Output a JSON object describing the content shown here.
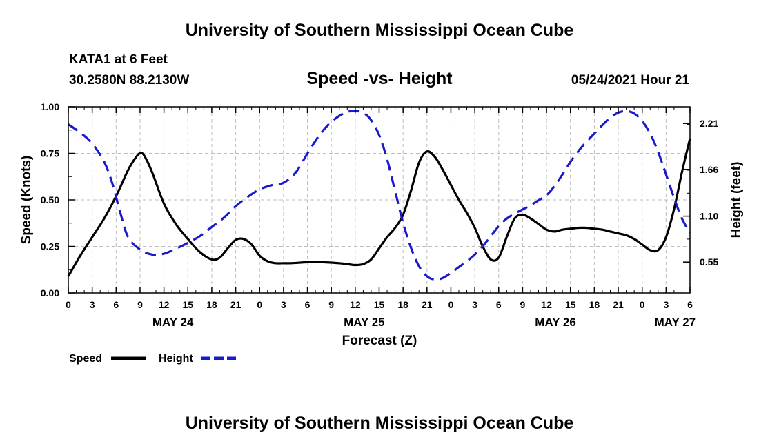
{
  "header": {
    "title": "University of Southern Mississippi Ocean Cube",
    "station": "KATA1 at 6 Feet",
    "coords": "30.2580N  88.2130W",
    "datetime": "05/24/2021 Hour 21"
  },
  "footer": {
    "title": "University of Southern Mississippi Ocean Cube"
  },
  "chart_data": {
    "type": "line",
    "title": "Speed -vs- Height",
    "xlabel": "Forecast (Z)",
    "ylabel_left": "Speed (Knots)",
    "ylabel_right": "Height (feet)",
    "xlim": [
      0,
      78
    ],
    "ylim_left": [
      0,
      1
    ],
    "ylim_right": [
      0.18,
      2.41
    ],
    "grid": true,
    "x_tick_labels": [
      "0",
      "3",
      "6",
      "9",
      "12",
      "15",
      "18",
      "21",
      "0",
      "3",
      "6",
      "9",
      "12",
      "15",
      "18",
      "21",
      "0",
      "3",
      "6",
      "9",
      "12",
      "15",
      "18",
      "21",
      "0",
      "3",
      "6"
    ],
    "date_labels": [
      {
        "label": "MAY 24",
        "x": 12
      },
      {
        "label": "MAY 25",
        "x": 36
      },
      {
        "label": "MAY 26",
        "x": 60
      },
      {
        "label": "MAY 27",
        "x": 75
      }
    ],
    "y_left_ticks": [
      {
        "value": 0,
        "label": "0.00"
      },
      {
        "value": 0.25,
        "label": "0.25"
      },
      {
        "value": 0.5,
        "label": "0.50"
      },
      {
        "value": 0.75,
        "label": "0.75"
      },
      {
        "value": 1.0,
        "label": "1.00"
      }
    ],
    "y_right_ticks": [
      {
        "value": 0.55,
        "label": "0.55"
      },
      {
        "value": 1.1,
        "label": "1.10"
      },
      {
        "value": 1.66,
        "label": "1.66"
      },
      {
        "value": 2.21,
        "label": "2.21"
      }
    ],
    "series": [
      {
        "name": "Speed",
        "axis": "left",
        "color": "#000000",
        "style": "solid",
        "x": [
          0,
          1.5,
          3,
          4.5,
          6,
          7.5,
          8.5,
          9,
          9.5,
          10.5,
          12,
          13.5,
          15,
          16.5,
          18,
          19,
          20,
          21,
          22,
          23,
          24,
          25,
          26,
          27,
          28,
          30,
          32,
          34,
          35,
          36,
          37,
          38,
          39,
          40,
          41,
          42,
          43,
          44,
          45,
          46,
          47,
          48,
          49,
          50,
          51,
          52,
          53,
          54,
          55,
          56,
          57,
          58,
          59,
          60,
          61,
          62,
          63,
          64,
          65,
          66,
          67,
          68,
          69,
          70,
          71,
          72,
          73,
          74,
          75,
          76,
          77,
          78
        ],
        "y": [
          0.09,
          0.2,
          0.3,
          0.4,
          0.52,
          0.66,
          0.73,
          0.75,
          0.74,
          0.65,
          0.48,
          0.37,
          0.29,
          0.22,
          0.18,
          0.19,
          0.24,
          0.285,
          0.29,
          0.26,
          0.2,
          0.17,
          0.16,
          0.16,
          0.16,
          0.165,
          0.165,
          0.16,
          0.155,
          0.15,
          0.155,
          0.18,
          0.24,
          0.3,
          0.35,
          0.42,
          0.55,
          0.7,
          0.76,
          0.73,
          0.66,
          0.58,
          0.5,
          0.43,
          0.35,
          0.25,
          0.18,
          0.19,
          0.3,
          0.4,
          0.42,
          0.4,
          0.37,
          0.34,
          0.33,
          0.34,
          0.345,
          0.35,
          0.35,
          0.345,
          0.34,
          0.33,
          0.32,
          0.31,
          0.29,
          0.26,
          0.23,
          0.23,
          0.3,
          0.45,
          0.65,
          0.83
        ]
      },
      {
        "name": "Height",
        "axis": "right",
        "color": "#1a1acd",
        "style": "dashed",
        "x": [
          0,
          1.5,
          3,
          4.5,
          5.5,
          6.5,
          7.5,
          9,
          10.5,
          12,
          13.5,
          15,
          16.5,
          18,
          19.5,
          21,
          22.5,
          24,
          25.5,
          27,
          28.5,
          30,
          31.5,
          33,
          34.5,
          35.5,
          36,
          37,
          38,
          39,
          40,
          41,
          42,
          43,
          44,
          45,
          46,
          47,
          48,
          49,
          50,
          51,
          52,
          53,
          54,
          55,
          56,
          57,
          58,
          59,
          60,
          61,
          62,
          63,
          64,
          65,
          66,
          67,
          68,
          69,
          70,
          71,
          72,
          73,
          74,
          75,
          76,
          77,
          78
        ],
        "y": [
          2.2,
          2.1,
          1.97,
          1.75,
          1.5,
          1.15,
          0.85,
          0.7,
          0.64,
          0.65,
          0.71,
          0.78,
          0.86,
          0.97,
          1.08,
          1.22,
          1.33,
          1.42,
          1.47,
          1.5,
          1.62,
          1.85,
          2.07,
          2.23,
          2.33,
          2.36,
          2.36,
          2.34,
          2.25,
          2.07,
          1.78,
          1.4,
          1.02,
          0.72,
          0.5,
          0.38,
          0.34,
          0.36,
          0.42,
          0.49,
          0.56,
          0.64,
          0.74,
          0.86,
          0.98,
          1.07,
          1.13,
          1.18,
          1.23,
          1.29,
          1.35,
          1.46,
          1.6,
          1.75,
          1.88,
          1.99,
          2.09,
          2.19,
          2.28,
          2.34,
          2.36,
          2.33,
          2.24,
          2.09,
          1.87,
          1.6,
          1.32,
          1.07,
          0.9
        ]
      }
    ]
  },
  "legend": {
    "speed_label": "Speed",
    "height_label": "Height"
  }
}
